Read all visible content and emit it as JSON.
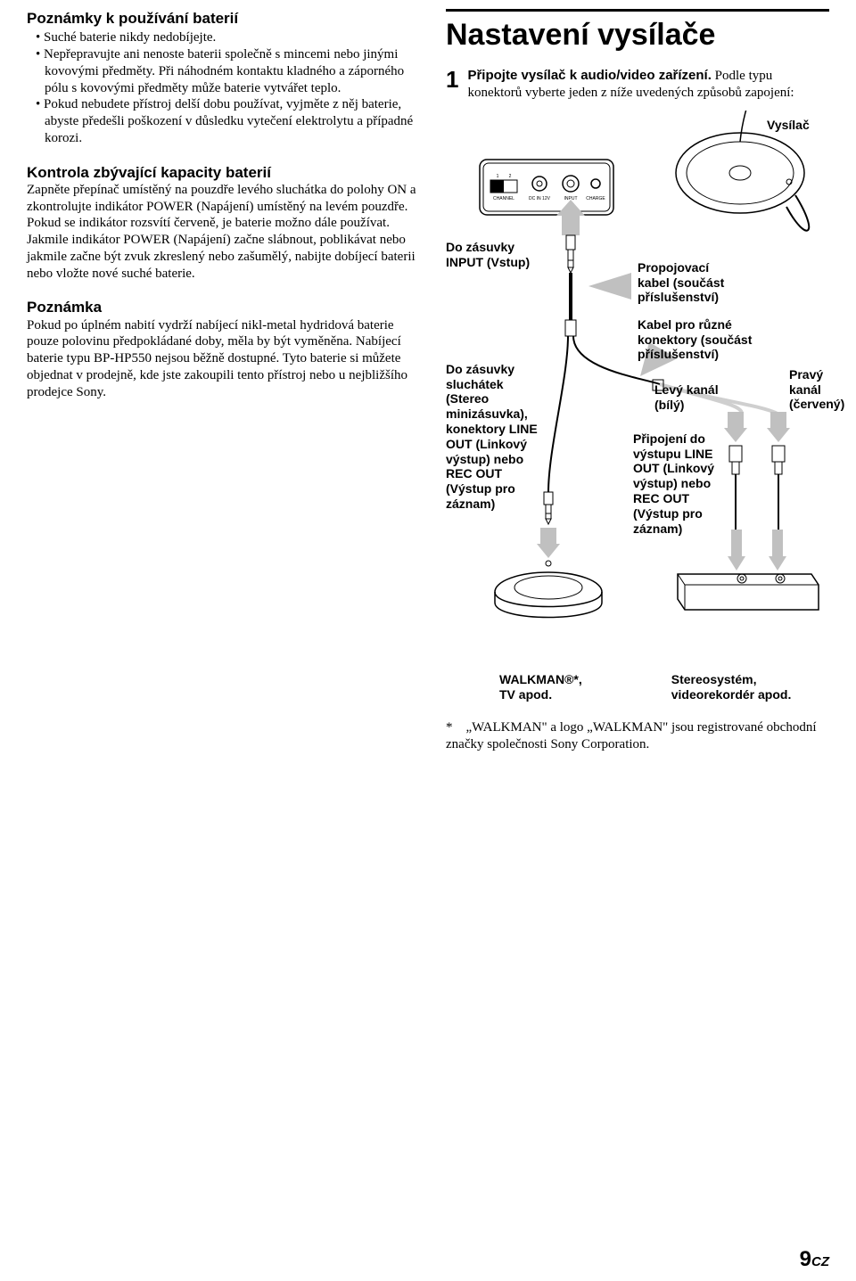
{
  "left": {
    "heading1": "Poznámky k používání baterií",
    "bullets": [
      "Suché baterie nikdy nedobíjejte.",
      "Nepřepravujte ani nenoste baterii společně s mincemi nebo jinými kovovými předměty. Při náhodném kontaktu kladného a záporného pólu s kovovými předměty může baterie vytvářet teplo.",
      "Pokud nebudete přístroj delší dobu používat, vyjměte z něj baterie, abyste předešli poškození v důsledku vytečení elektrolytu a případné korozi."
    ],
    "heading2": "Kontrola zbývající kapacity baterií",
    "para1": "Zapněte přepínač umístěný na pouzdře levého sluchátka do polohy ON a zkontrolujte indikátor POWER (Napájení) umístěný na levém pouzdře. Pokud se indikátor rozsvítí červeně, je baterie možno dále používat.",
    "para2": "Jakmile indikátor POWER (Napájení) začne slábnout, poblikávat nebo jakmile začne být zvuk zkreslený nebo zašumělý, nabijte dobíjecí baterii nebo vložte nové suché baterie.",
    "heading3": "Poznámka",
    "para3": "Pokud po úplném nabití vydrží nabíjecí nikl-metal hydridová baterie pouze polovinu předpokládané doby, měla by být vyměněna. Nabíjecí baterie typu BP-HP550 nejsou běžně dostupné. Tyto baterie si můžete objednat v prodejně, kde jste zakoupili tento přístroj nebo u nejbližšího prodejce Sony."
  },
  "right": {
    "title": "Nastavení vysílače",
    "step_num": "1",
    "step_bold": "Připojte vysílač k audio/video zařízení.",
    "step_rest": "Podle typu konektorů vyberte jeden z níže uvedených způsobů zapojení:",
    "labels": {
      "vysilac": "Vysílač",
      "input_jack": "Do zásuvky\nINPUT (Vstup)",
      "propoj": "Propojovací\nkabel (součást\npříslušenství)",
      "kabel_ruzne": "Kabel pro různé\nkonektory (součást\npříslušenství)",
      "levy": "Levý kanál\n(bílý)",
      "pravy": "Pravý\nkanál\n(červený)",
      "sluchatka": "Do zásuvky\nsluchátek\n(Stereo\nminizásuvka),\nkonektory LINE\nOUT (Linkový\nvýstup) nebo\nREC OUT\n(Výstup pro\nzáznam)",
      "lineout": "Připojení do\nvýstupu LINE\nOUT (Linkový\nvýstup) nebo\nREC OUT\n(Výstup pro\nzáznam)",
      "walkman": "WALKMAN®*,\nTV apod.",
      "stereo": "Stereosystém,\nvideorekordér apod."
    },
    "panel": {
      "channel": "CHANNEL",
      "ch1": "1",
      "ch2": "2",
      "dcin": "DC IN 12V",
      "input": "INPUT",
      "charge": "CHARGE"
    },
    "footnote_mark": "*",
    "footnote": "„WALKMAN\" a logo „WALKMAN\" jsou registrované obchodní značky společnosti Sony Corporation."
  },
  "pagenum": {
    "n": "9",
    "cz": "CZ"
  },
  "colors": {
    "black": "#000000",
    "gray_arrow": "#c0c0c0",
    "gray_wire": "#cfcfcf",
    "white": "#ffffff"
  }
}
